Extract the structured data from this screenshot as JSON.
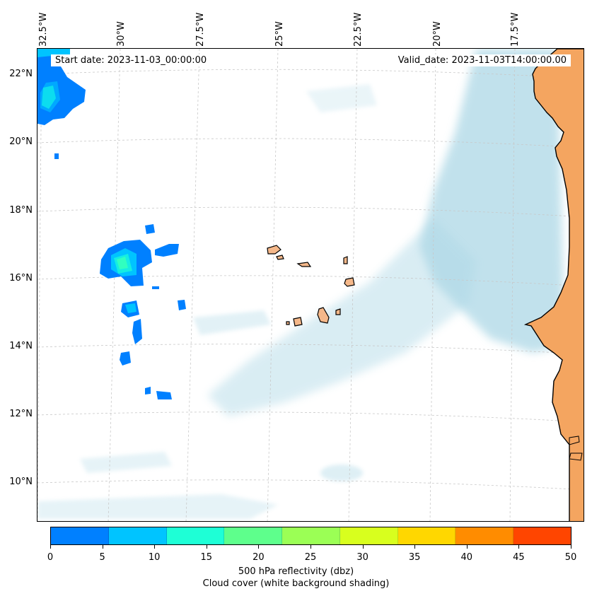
{
  "map": {
    "start_date_text": "Start date: 2023-11-03_00:00:00",
    "valid_date_text": "Valid_date: 2023-11-03T14:00:00.00",
    "lon_labels": [
      "32.5°W",
      "30°W",
      "27.5°W",
      "25°W",
      "22.5°W",
      "20°W",
      "17.5°W"
    ],
    "lat_labels": [
      "22°N",
      "20°N",
      "18°N",
      "16°N",
      "14°N",
      "12°N",
      "10°N"
    ],
    "colors": {
      "land": "#f4a560",
      "island_land": "#f5b88a",
      "cloud": "#add8e6",
      "frame": "#000000"
    }
  },
  "colorbar": {
    "ticks": [
      "0",
      "5",
      "10",
      "15",
      "20",
      "25",
      "30",
      "35",
      "40",
      "45",
      "50"
    ],
    "colors": [
      "#0080ff",
      "#00c4ff",
      "#1effd6",
      "#5eff8c",
      "#9bff55",
      "#d8ff1e",
      "#ffd700",
      "#ff8c00",
      "#ff4500"
    ],
    "label_line1": "500 hPa reflectivity (dbz)",
    "label_line2": "Cloud cover (white background shading)"
  }
}
